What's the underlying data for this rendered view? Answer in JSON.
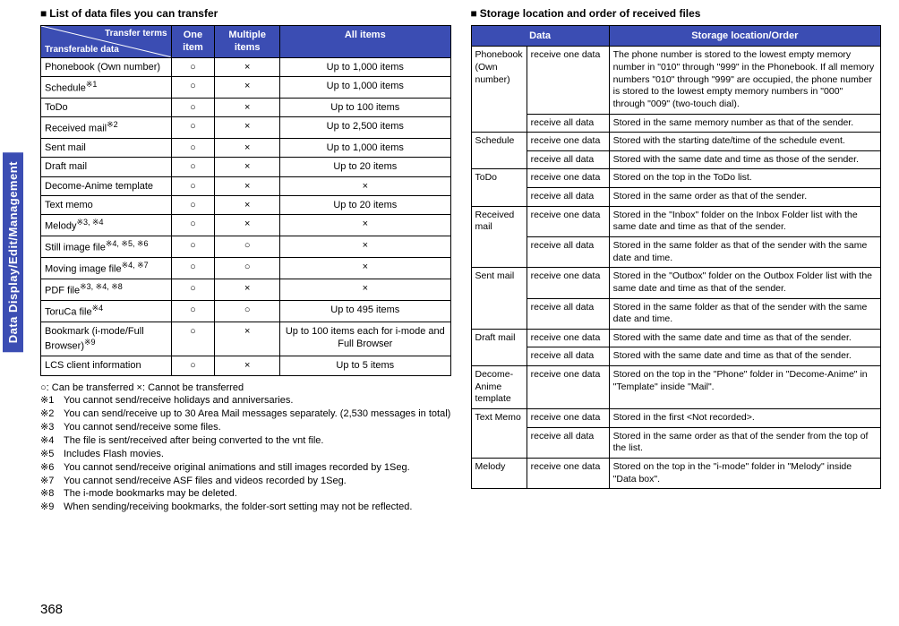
{
  "sideTab": "Data Display/Edit/Management",
  "pageNumber": "368",
  "left": {
    "title": "List of data files you can transfer",
    "header": {
      "diagTR": "Transfer terms",
      "diagBL": "Transferable data",
      "col2": "One item",
      "col3": "Multiple items",
      "col4": "All items"
    },
    "rows": [
      {
        "label": "Phonebook (Own number)",
        "sup": "",
        "one": "○",
        "multi": "×",
        "all": "Up to 1,000 items"
      },
      {
        "label": "Schedule",
        "sup": "※1",
        "one": "○",
        "multi": "×",
        "all": "Up to 1,000 items"
      },
      {
        "label": "ToDo",
        "sup": "",
        "one": "○",
        "multi": "×",
        "all": "Up to 100 items"
      },
      {
        "label": "Received mail",
        "sup": "※2",
        "one": "○",
        "multi": "×",
        "all": "Up to 2,500 items"
      },
      {
        "label": "Sent mail",
        "sup": "",
        "one": "○",
        "multi": "×",
        "all": "Up to 1,000 items"
      },
      {
        "label": "Draft mail",
        "sup": "",
        "one": "○",
        "multi": "×",
        "all": "Up to 20 items"
      },
      {
        "label": "Decome-Anime template",
        "sup": "",
        "one": "○",
        "multi": "×",
        "all": "×"
      },
      {
        "label": "Text memo",
        "sup": "",
        "one": "○",
        "multi": "×",
        "all": "Up to 20 items"
      },
      {
        "label": "Melody",
        "sup": "※3, ※4",
        "one": "○",
        "multi": "×",
        "all": "×"
      },
      {
        "label": "Still image file",
        "sup": "※4, ※5, ※6",
        "one": "○",
        "multi": "○",
        "all": "×"
      },
      {
        "label": "Moving image file",
        "sup": "※4, ※7",
        "one": "○",
        "multi": "○",
        "all": "×"
      },
      {
        "label": "PDF file",
        "sup": "※3, ※4, ※8",
        "one": "○",
        "multi": "×",
        "all": "×"
      },
      {
        "label": "ToruCa file",
        "sup": "※4",
        "one": "○",
        "multi": "○",
        "all": "Up to 495 items"
      },
      {
        "label": "Bookmark (i-mode/Full Browser)",
        "sup": "※9",
        "one": "○",
        "multi": "×",
        "all": "Up to 100 items each for i-mode and Full Browser"
      },
      {
        "label": "LCS client information",
        "sup": "",
        "one": "○",
        "multi": "×",
        "all": "Up to 5 items"
      }
    ],
    "legend": "○: Can be transferred        ×: Cannot be transferred",
    "notes": [
      {
        "tag": "※1",
        "text": "You cannot send/receive holidays and anniversaries."
      },
      {
        "tag": "※2",
        "text": "You can send/receive up to 30 Area Mail messages separately. (2,530 messages in total)"
      },
      {
        "tag": "※3",
        "text": "You cannot send/receive some files."
      },
      {
        "tag": "※4",
        "text": "The file is sent/received after being converted to the vnt file."
      },
      {
        "tag": "※5",
        "text": "Includes Flash movies."
      },
      {
        "tag": "※6",
        "text": "You cannot send/receive original animations and still images recorded by 1Seg."
      },
      {
        "tag": "※7",
        "text": "You cannot send/receive ASF files and videos recorded by 1Seg."
      },
      {
        "tag": "※8",
        "text": "The i-mode bookmarks may be deleted."
      },
      {
        "tag": "※9",
        "text": "When sending/receiving bookmarks, the folder-sort setting may not be reflected."
      }
    ]
  },
  "right": {
    "title": "Storage location and order of received files",
    "header": {
      "col1": "Data",
      "col2": "Storage location/Order"
    },
    "rows": [
      {
        "data": "Phonebook (Own number)",
        "rowspan": 2,
        "cond": "receive one data",
        "desc": "The phone number is stored to the lowest empty memory number in \"010\" through \"999\" in the Phonebook. If all memory numbers \"010\" through \"999\" are occupied, the phone number is stored to the lowest empty memory numbers in \"000\" through \"009\" (two-touch dial)."
      },
      {
        "data": "",
        "cond": "receive all data",
        "desc": "Stored in the same memory number as that of the sender."
      },
      {
        "data": "Schedule",
        "rowspan": 2,
        "cond": "receive one data",
        "desc": "Stored with the starting date/time of the schedule event."
      },
      {
        "data": "",
        "cond": "receive all data",
        "desc": "Stored with the same date and time as those of the sender."
      },
      {
        "data": "ToDo",
        "rowspan": 2,
        "cond": "receive one data",
        "desc": "Stored on the top in the ToDo list."
      },
      {
        "data": "",
        "cond": "receive all data",
        "desc": "Stored in the same order as that of the sender."
      },
      {
        "data": "Received mail",
        "rowspan": 2,
        "cond": "receive one data",
        "desc": "Stored in the \"Inbox\" folder on the Inbox Folder list with the same date and time as that of the sender."
      },
      {
        "data": "",
        "cond": "receive all data",
        "desc": "Stored in the same folder as that of the sender with the same date and time."
      },
      {
        "data": "Sent mail",
        "rowspan": 2,
        "cond": "receive one data",
        "desc": "Stored in the \"Outbox\" folder on the Outbox Folder list with the same date and time as that of the sender."
      },
      {
        "data": "",
        "cond": "receive all data",
        "desc": "Stored in the same folder as that of the sender with the same date and time."
      },
      {
        "data": "Draft mail",
        "rowspan": 2,
        "cond": "receive one data",
        "desc": "Stored with the same date and time as that of the sender."
      },
      {
        "data": "",
        "cond": "receive all data",
        "desc": "Stored with the same date and time as that of the sender."
      },
      {
        "data": "Decome-Anime template",
        "rowspan": 1,
        "cond": "receive one data",
        "desc": "Stored on the top in the \"Phone\" folder in \"Decome-Anime\" in \"Template\" inside \"Mail\"."
      },
      {
        "data": "Text Memo",
        "rowspan": 2,
        "cond": "receive one data",
        "desc": "Stored in the first <Not recorded>."
      },
      {
        "data": "",
        "cond": "receive all data",
        "desc": "Stored in the same order as that of the sender from the top of the list."
      },
      {
        "data": "Melody",
        "rowspan": 1,
        "cond": "receive one data",
        "desc": "Stored on the top in the \"i-mode\" folder in \"Melody\" inside \"Data box\"."
      }
    ]
  }
}
